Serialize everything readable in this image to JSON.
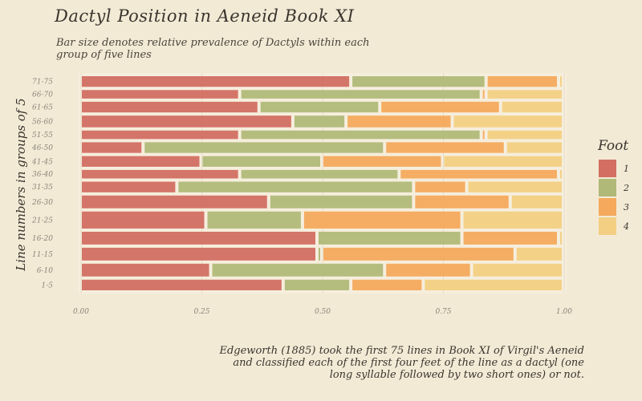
{
  "title": "Dactyl Position in Aeneid Book XI",
  "subtitle": "Bar size denotes relative prevalence of Dactyls within each group of five lines",
  "caption": "Edgeworth (1885) took the first 75 lines in Book XI of Virgil's Aeneid and classified each of the first four feet of the line as a dactyl (one long syllable followed by two short ones) or not.",
  "colors": {
    "1": "#d26e62",
    "2": "#b0b978",
    "3": "#f4a95c",
    "4": "#f2cf82"
  },
  "chart_data": {
    "type": "bar",
    "orientation": "horizontal",
    "stacked": true,
    "title": "Dactyl Position in Aeneid Book XI",
    "subtitle": "Bar size denotes relative prevalence of Dactyls within each group of five lines",
    "xlabel": "",
    "ylabel": "Line numbers in groups of 5",
    "xlim": [
      0,
      1
    ],
    "xticks": [
      "0.00",
      "0.25",
      "0.50",
      "0.75",
      "1.00"
    ],
    "legend_title": "Foot",
    "legend_position": "right",
    "categories": [
      "1-5",
      "6-10",
      "11-15",
      "16-20",
      "21-25",
      "26-30",
      "31-35",
      "36-40",
      "41-45",
      "46-50",
      "51-55",
      "56-60",
      "61-65",
      "66-70",
      "71-75"
    ],
    "row_weights": [
      1,
      1.2,
      1.2,
      1.2,
      1.6,
      1.2,
      1,
      0.8,
      1,
      1,
      0.8,
      1.1,
      1,
      0.8,
      1
    ],
    "series": [
      {
        "name": "1",
        "values": [
          0.42,
          0.27,
          0.49,
          0.49,
          0.26,
          0.39,
          0.2,
          0.33,
          0.25,
          0.13,
          0.33,
          0.44,
          0.37,
          0.33,
          0.56
        ]
      },
      {
        "name": "2",
        "values": [
          0.14,
          0.36,
          0.01,
          0.3,
          0.2,
          0.3,
          0.49,
          0.33,
          0.25,
          0.5,
          0.5,
          0.11,
          0.25,
          0.5,
          0.28
        ]
      },
      {
        "name": "3",
        "values": [
          0.15,
          0.18,
          0.4,
          0.2,
          0.33,
          0.2,
          0.11,
          0.33,
          0.25,
          0.25,
          0.01,
          0.22,
          0.25,
          0.01,
          0.15
        ]
      },
      {
        "name": "4",
        "values": [
          0.29,
          0.19,
          0.1,
          0.01,
          0.21,
          0.11,
          0.2,
          0.01,
          0.25,
          0.12,
          0.16,
          0.23,
          0.13,
          0.16,
          0.01
        ]
      }
    ]
  }
}
